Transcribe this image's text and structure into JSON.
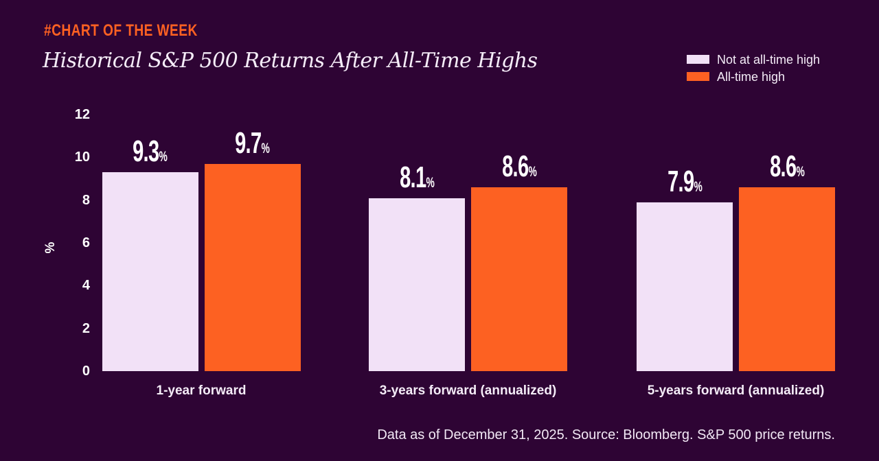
{
  "header": {
    "kicker": "#CHART OF THE WEEK",
    "title": "Historical S&P 500 Returns After All-Time Highs"
  },
  "legend": {
    "items": [
      {
        "label": "Not at all-time high",
        "color": "#f2e1f7"
      },
      {
        "label": "All-time high",
        "color": "#fd6122"
      }
    ],
    "position": "top-right"
  },
  "chart_data": {
    "type": "bar",
    "categories": [
      "1-year forward",
      "3-years forward (annualized)",
      "5-years forward (annualized)"
    ],
    "series": [
      {
        "name": "Not at all-time high",
        "color": "#f2e1f7",
        "values": [
          9.3,
          8.1,
          7.9
        ]
      },
      {
        "name": "All-time high",
        "color": "#fd6122",
        "values": [
          9.7,
          8.6,
          8.6
        ]
      }
    ],
    "value_labels": [
      [
        "9.3",
        "8.1",
        "7.9"
      ],
      [
        "9.7",
        "8.6",
        "8.6"
      ]
    ],
    "value_label_suffix": "%",
    "title": "Historical S&P 500 Returns After All-Time Highs",
    "xlabel": "",
    "ylabel": "%",
    "ylim": [
      0,
      12
    ],
    "yticks": [
      0,
      2,
      4,
      6,
      8,
      10,
      12
    ],
    "grid": false,
    "legend_position": "top-right"
  },
  "footer": {
    "note": "Data as of December 31, 2025. Source: Bloomberg. S&P 500 price returns."
  },
  "colors": {
    "background": "#2e0434",
    "accent_orange": "#fd6122",
    "bar_light": "#f2e1f7",
    "text_light": "#f4ecf7",
    "text_white": "#ffffff"
  }
}
